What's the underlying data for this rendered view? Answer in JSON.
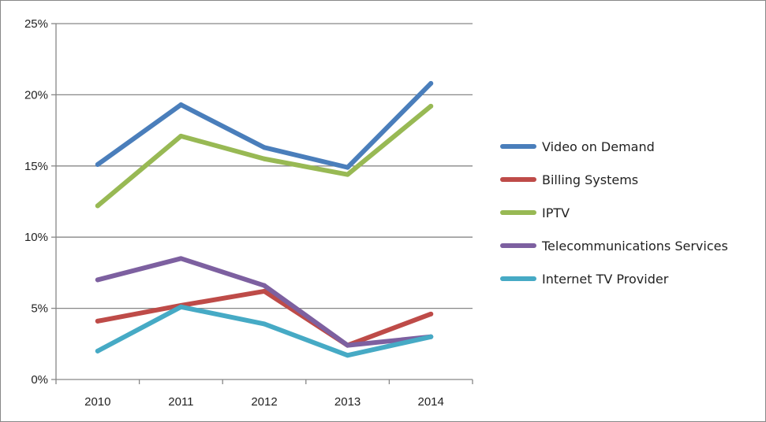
{
  "chart_data": {
    "type": "line",
    "title": "",
    "xlabel": "",
    "ylabel": "",
    "categories": [
      "2010",
      "2011",
      "2012",
      "2013",
      "2014"
    ],
    "ylim": [
      0,
      25
    ],
    "y_ticks": [
      0,
      5,
      10,
      15,
      20,
      25
    ],
    "y_tick_format": "percent",
    "grid": "horizontal",
    "legend_position": "right",
    "series": [
      {
        "name": "Video on Demand",
        "color": "#4a7ebb",
        "values": [
          15.1,
          19.3,
          16.3,
          14.9,
          20.8
        ]
      },
      {
        "name": "Billing Systems",
        "color": "#be4b48",
        "values": [
          4.1,
          5.2,
          6.2,
          2.4,
          4.6
        ]
      },
      {
        "name": "IPTV",
        "color": "#98b954",
        "values": [
          12.2,
          17.1,
          15.5,
          14.4,
          19.2
        ]
      },
      {
        "name": "Telecommunications Services",
        "color": "#7d60a0",
        "values": [
          7.0,
          8.5,
          6.6,
          2.4,
          3.0
        ]
      },
      {
        "name": "Internet TV Provider",
        "color": "#46aac5",
        "values": [
          2.0,
          5.1,
          3.9,
          1.7,
          3.0
        ]
      }
    ]
  }
}
